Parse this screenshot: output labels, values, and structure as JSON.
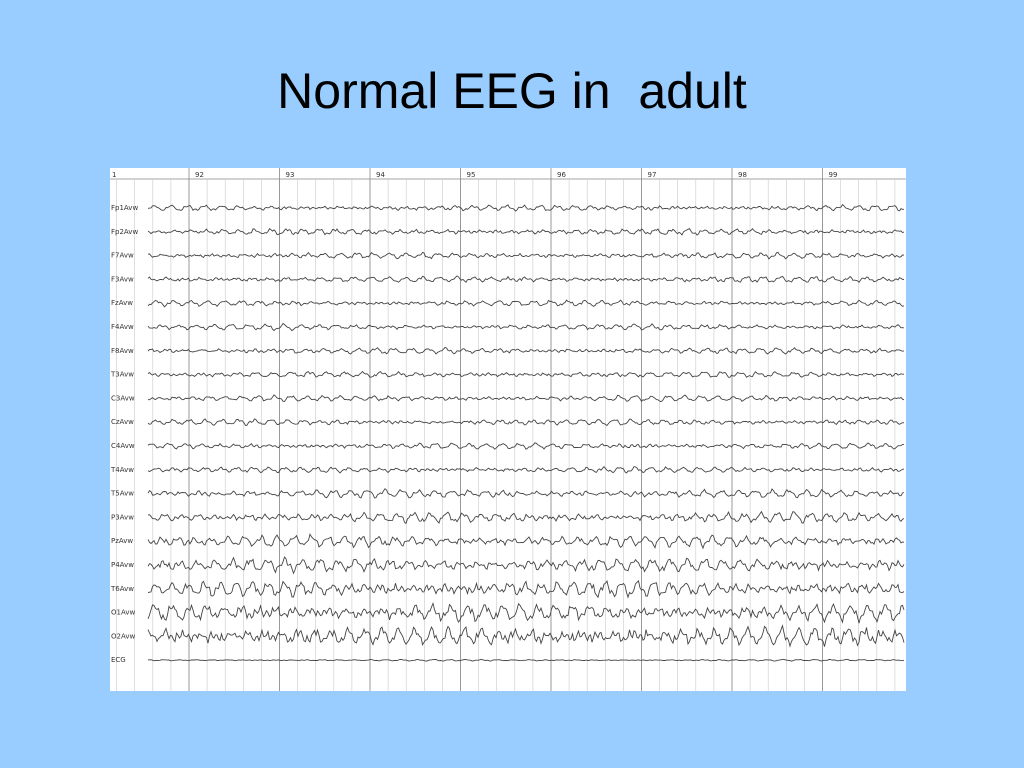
{
  "slide": {
    "title": "Normal EEG in  adult"
  },
  "eeg": {
    "page_marker": "1",
    "seconds": [
      "92",
      "93",
      "94",
      "95",
      "96",
      "97",
      "98",
      "99"
    ],
    "channels": [
      "Fp1Avw",
      "Fp2Avw",
      "F7Avw",
      "F3Avw",
      "FzAvw",
      "F4Avw",
      "F8Avw",
      "T3Avw",
      "C3Avw",
      "CzAvw",
      "C4Avw",
      "T4Avw",
      "T5Avw",
      "P3Avw",
      "PzAvw",
      "P4Avw",
      "T6Avw",
      "O1Avw",
      "O2Avw",
      "ECG"
    ],
    "colors": {
      "background": "#99ccff",
      "trace": "#444444",
      "grid_major": "#888888",
      "grid_minor": "#c8c8c8"
    }
  }
}
